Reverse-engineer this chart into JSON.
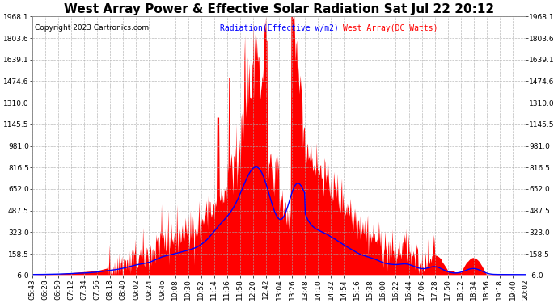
{
  "title": "West Array Power & Effective Solar Radiation Sat Jul 22 20:12",
  "copyright": "Copyright 2023 Cartronics.com",
  "legend_radiation": "Radiation(Effective w/m2)",
  "legend_west": "West Array(DC Watts)",
  "radiation_color": "blue",
  "west_color": "red",
  "bg_color": "#ffffff",
  "plot_bg_color": "#ffffff",
  "ylim": [
    -6.0,
    1968.1
  ],
  "yticks": [
    -6.0,
    158.5,
    323.0,
    487.5,
    652.0,
    816.5,
    981.0,
    1145.5,
    1310.0,
    1474.6,
    1639.1,
    1803.6,
    1968.1
  ],
  "title_fontsize": 11,
  "tick_fontsize": 6.5,
  "copyright_fontsize": 6.5
}
